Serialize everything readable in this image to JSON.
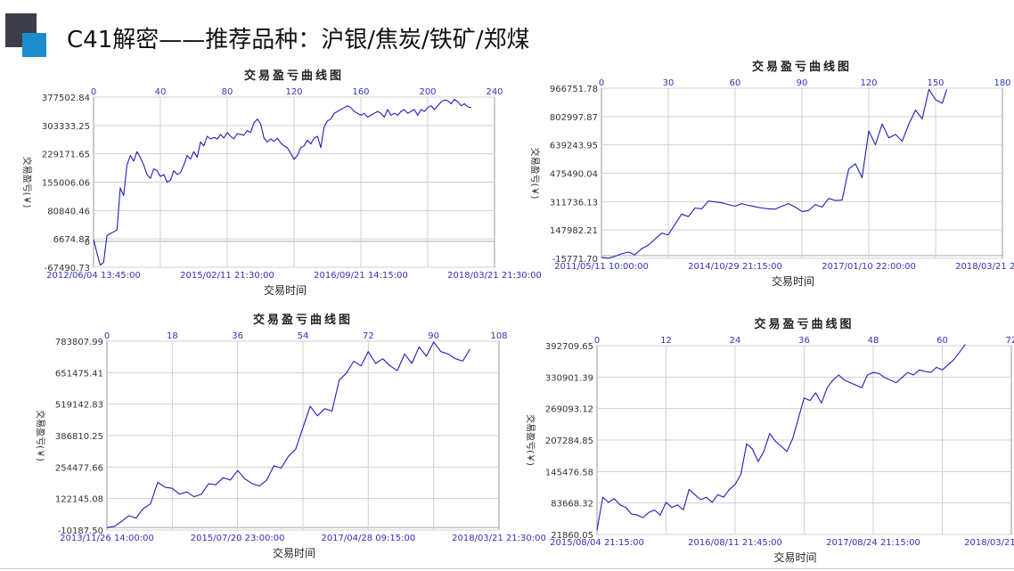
{
  "page": {
    "title": "C41解密——推荐品种：沪银/焦炭/铁矿/郑煤",
    "accent_dark": "#3b3e48",
    "accent_blue": "#1c8ccf"
  },
  "style": {
    "line_color": "#1f1fb5",
    "axis_text_color": "#3333bb",
    "grid_color": "#d0d0d0"
  },
  "chart_data": [
    {
      "type": "line",
      "title": "交易盈亏曲线图",
      "xlabel": "交易时间",
      "ylabel": "交易盈亏(￥)",
      "ylim": [
        -67490.73,
        377502.84
      ],
      "y_ticks": [
        "377502.84",
        "303333.25",
        "229171.65",
        "155006.06",
        "80840.46",
        "6674.87",
        "-67490.73"
      ],
      "zero_label": "0",
      "top_ticks": [
        "0",
        "40",
        "80",
        "120",
        "160",
        "200",
        "240"
      ],
      "top_range": [
        0,
        240
      ],
      "x_ticks": [
        "2012/06/04 13:45:00",
        "2015/02/11 21:30:00",
        "2016/09/21 14:15:00",
        "2018/03/21 21:30:00"
      ],
      "grid": true,
      "series": [
        {
          "x": [
            0,
            2,
            4,
            6,
            8,
            10,
            12,
            14,
            16,
            18,
            20,
            22,
            24,
            26,
            28,
            30,
            32,
            34,
            36,
            38,
            40,
            42,
            44,
            46,
            48,
            50,
            52,
            54,
            56,
            58,
            60,
            62,
            64,
            66,
            68,
            70,
            72,
            74,
            76,
            78,
            80,
            82,
            84,
            86,
            88,
            90,
            92,
            94,
            96,
            98,
            100,
            102,
            104,
            106,
            108,
            110,
            112,
            114,
            116,
            118,
            120,
            122,
            124,
            126,
            128,
            130,
            132,
            134,
            136,
            138,
            140,
            142,
            144,
            146,
            148,
            150,
            152,
            154,
            156,
            158,
            160,
            162,
            164,
            166,
            168,
            170,
            172,
            174,
            176,
            178,
            180,
            182,
            184,
            186,
            188,
            190,
            192,
            194,
            196,
            198,
            200,
            202,
            204,
            206,
            208,
            210,
            212,
            214,
            216,
            218,
            220,
            222,
            224,
            226
          ],
          "y": [
            5000,
            -30000,
            -62000,
            -55000,
            15000,
            20000,
            25000,
            30000,
            140000,
            120000,
            200000,
            225000,
            210000,
            235000,
            220000,
            200000,
            175000,
            165000,
            190000,
            185000,
            170000,
            175000,
            155000,
            160000,
            185000,
            175000,
            180000,
            200000,
            225000,
            215000,
            235000,
            220000,
            260000,
            250000,
            275000,
            268000,
            272000,
            268000,
            280000,
            270000,
            285000,
            275000,
            268000,
            282000,
            280000,
            278000,
            290000,
            285000,
            310000,
            320000,
            308000,
            270000,
            260000,
            268000,
            262000,
            270000,
            258000,
            250000,
            245000,
            230000,
            215000,
            225000,
            245000,
            250000,
            265000,
            255000,
            270000,
            275000,
            245000,
            300000,
            315000,
            320000,
            335000,
            340000,
            345000,
            350000,
            355000,
            350000,
            340000,
            335000,
            330000,
            335000,
            325000,
            330000,
            335000,
            340000,
            335000,
            325000,
            345000,
            330000,
            335000,
            330000,
            340000,
            345000,
            335000,
            340000,
            345000,
            330000,
            345000,
            340000,
            350000,
            355000,
            345000,
            355000,
            365000,
            370000,
            368000,
            360000,
            372000,
            365000,
            355000,
            360000,
            352000,
            350000
          ]
        }
      ]
    },
    {
      "type": "line",
      "title": "交易盈亏曲线图",
      "xlabel": "交易时间",
      "ylabel": "交易盈亏(￥)",
      "ylim": [
        -15771.7,
        966751.78
      ],
      "y_ticks": [
        "966751.78",
        "802997.87",
        "639243.95",
        "475490.04",
        "311736.13",
        "147982.21",
        "-15771.70"
      ],
      "top_ticks": [
        "0",
        "30",
        "60",
        "90",
        "120",
        "150",
        "180"
      ],
      "top_range": [
        0,
        180
      ],
      "x_ticks": [
        "2011/05/11 10:00:00",
        "2014/10/29 21:15:00",
        "2017/01/10 22:00:00",
        "2018/03/21 21:30:00"
      ],
      "grid": true,
      "series": [
        {
          "x": [
            0,
            3,
            6,
            9,
            12,
            15,
            18,
            21,
            24,
            27,
            30,
            33,
            36,
            39,
            42,
            45,
            48,
            51,
            54,
            57,
            60,
            63,
            66,
            69,
            72,
            75,
            78,
            81,
            84,
            87,
            90,
            93,
            96,
            99,
            102,
            105,
            108,
            111,
            114,
            117,
            120,
            123,
            126,
            129,
            132,
            135,
            138,
            141,
            144,
            147,
            150,
            153,
            155
          ],
          "y": [
            -10000,
            -15000,
            -5000,
            10000,
            20000,
            5000,
            40000,
            60000,
            95000,
            130000,
            120000,
            180000,
            240000,
            225000,
            275000,
            270000,
            315000,
            310000,
            305000,
            295000,
            285000,
            300000,
            290000,
            282000,
            275000,
            270000,
            268000,
            285000,
            300000,
            280000,
            255000,
            260000,
            295000,
            280000,
            330000,
            318000,
            320000,
            500000,
            530000,
            450000,
            720000,
            640000,
            760000,
            680000,
            700000,
            660000,
            760000,
            840000,
            790000,
            960000,
            900000,
            880000,
            960000
          ]
        }
      ]
    },
    {
      "type": "line",
      "title": "交易盈亏曲线图",
      "xlabel": "交易时间",
      "ylabel": "交易盈亏(￥)",
      "ylim": [
        -10187.5,
        783807.99
      ],
      "y_ticks": [
        "783807.99",
        "651475.41",
        "519142.83",
        "386810.25",
        "254477.66",
        "122145.08",
        "-10187.50"
      ],
      "top_ticks": [
        "0",
        "18",
        "36",
        "54",
        "72",
        "90",
        "108"
      ],
      "top_range": [
        0,
        108
      ],
      "x_ticks": [
        "2013/11/26 14:00:00",
        "2015/07/20 23:00:00",
        "2017/04/28 09:15:00",
        "2018/03/21 21:30:00"
      ],
      "grid": true,
      "series": [
        {
          "x": [
            0,
            2,
            4,
            6,
            8,
            10,
            12,
            14,
            16,
            18,
            20,
            22,
            24,
            26,
            28,
            30,
            32,
            34,
            36,
            38,
            40,
            42,
            44,
            46,
            48,
            50,
            52,
            54,
            56,
            58,
            60,
            62,
            64,
            66,
            68,
            70,
            72,
            74,
            76,
            78,
            80,
            82,
            84,
            86,
            88,
            90,
            92,
            94,
            96,
            98,
            100
          ],
          "y": [
            0,
            5000,
            25000,
            50000,
            40000,
            80000,
            100000,
            190000,
            170000,
            165000,
            140000,
            150000,
            130000,
            140000,
            185000,
            180000,
            210000,
            200000,
            240000,
            205000,
            185000,
            175000,
            200000,
            260000,
            250000,
            300000,
            330000,
            420000,
            510000,
            470000,
            500000,
            490000,
            620000,
            650000,
            700000,
            680000,
            740000,
            690000,
            710000,
            680000,
            660000,
            730000,
            690000,
            760000,
            720000,
            780000,
            740000,
            730000,
            710000,
            700000,
            750000
          ]
        }
      ]
    },
    {
      "type": "line",
      "title": "交易盈亏曲线图",
      "xlabel": "交易时间",
      "ylabel": "交易盈亏(￥)",
      "ylim": [
        21860.05,
        392709.65
      ],
      "y_ticks": [
        "392709.65",
        "330901.39",
        "269093.12",
        "207284.85",
        "145476.58",
        "83668.32",
        "21860.05"
      ],
      "top_ticks": [
        "0",
        "12",
        "24",
        "36",
        "48",
        "60",
        "72"
      ],
      "top_range": [
        0,
        72
      ],
      "x_ticks": [
        "2015/08/04 21:15:00",
        "2016/08/11 21:45:00",
        "2017/08/24 21:15:00",
        "2018/03/21 21:30:00"
      ],
      "grid": true,
      "series": [
        {
          "x": [
            0,
            1,
            2,
            3,
            4,
            5,
            6,
            7,
            8,
            9,
            10,
            11,
            12,
            13,
            14,
            15,
            16,
            17,
            18,
            19,
            20,
            21,
            22,
            23,
            24,
            25,
            26,
            27,
            28,
            29,
            30,
            31,
            32,
            33,
            34,
            35,
            36,
            37,
            38,
            39,
            40,
            41,
            42,
            43,
            44,
            45,
            46,
            47,
            48,
            49,
            50,
            51,
            52,
            53,
            54,
            55,
            56,
            57,
            58,
            59,
            60,
            61,
            62,
            63,
            64
          ],
          "y": [
            30000,
            95000,
            85000,
            92000,
            80000,
            75000,
            62000,
            60000,
            55000,
            65000,
            70000,
            60000,
            85000,
            75000,
            80000,
            70000,
            110000,
            100000,
            90000,
            95000,
            85000,
            100000,
            95000,
            110000,
            120000,
            140000,
            200000,
            190000,
            165000,
            185000,
            220000,
            205000,
            195000,
            185000,
            210000,
            250000,
            290000,
            285000,
            300000,
            280000,
            310000,
            325000,
            335000,
            325000,
            320000,
            315000,
            310000,
            335000,
            340000,
            338000,
            330000,
            325000,
            320000,
            330000,
            340000,
            335000,
            345000,
            342000,
            340000,
            350000,
            345000,
            355000,
            365000,
            380000,
            395000
          ]
        }
      ]
    }
  ]
}
